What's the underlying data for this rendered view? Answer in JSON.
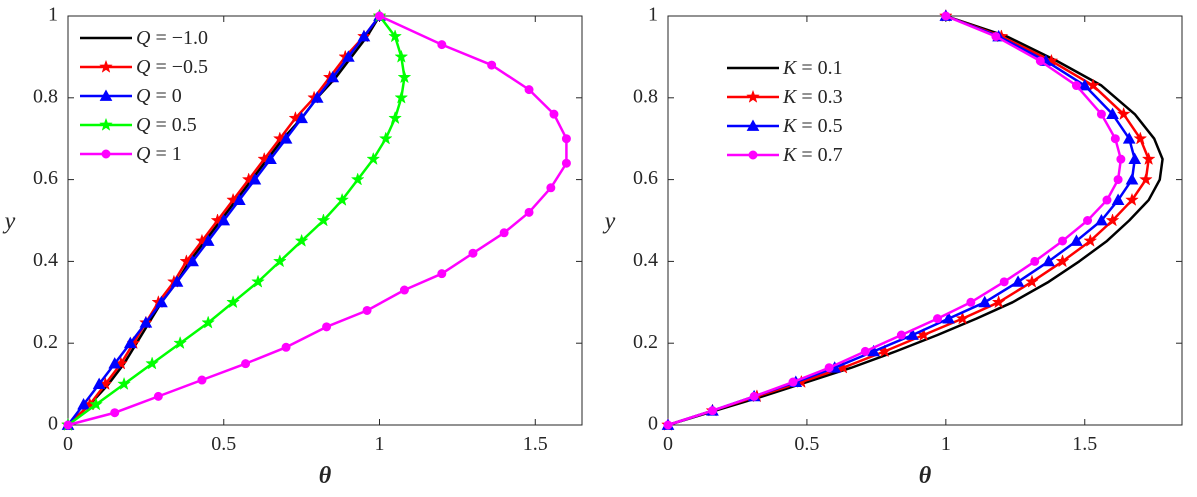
{
  "chart_data": [
    {
      "type": "line",
      "xlabel": "θ",
      "ylabel": "y",
      "xlim": [
        0,
        1.65
      ],
      "ylim": [
        0,
        1
      ],
      "xticks": [
        "0",
        "0.5",
        "1",
        "1.5"
      ],
      "yticks": [
        "0",
        "0.2",
        "0.4",
        "0.6",
        "0.8",
        "1"
      ],
      "grid": false,
      "legend": {
        "placement": "top-left",
        "entries": [
          {
            "var": "Q",
            "value": "= −1.0"
          },
          {
            "var": "Q",
            "value": "= −0.5"
          },
          {
            "var": "Q",
            "value": "= 0"
          },
          {
            "var": "Q",
            "value": "= 0.5"
          },
          {
            "var": "Q",
            "value": "= 1"
          }
        ]
      },
      "series": [
        {
          "name": "Q = −1.0",
          "color": "#000000",
          "marker": "none",
          "points": [
            [
              0,
              0
            ],
            [
              0.07,
              0.05
            ],
            [
              0.13,
              0.1
            ],
            [
              0.18,
              0.15
            ],
            [
              0.22,
              0.2
            ],
            [
              0.26,
              0.25
            ],
            [
              0.3,
              0.3
            ],
            [
              0.35,
              0.35
            ],
            [
              0.39,
              0.4
            ],
            [
              0.44,
              0.45
            ],
            [
              0.49,
              0.5
            ],
            [
              0.54,
              0.55
            ],
            [
              0.59,
              0.6
            ],
            [
              0.64,
              0.65
            ],
            [
              0.69,
              0.7
            ],
            [
              0.75,
              0.75
            ],
            [
              0.8,
              0.8
            ],
            [
              0.86,
              0.85
            ],
            [
              0.91,
              0.9
            ],
            [
              0.96,
              0.95
            ],
            [
              1.0,
              1.0
            ]
          ]
        },
        {
          "name": "Q = −0.5",
          "color": "#ff0000",
          "marker": "star",
          "points": [
            [
              0,
              0
            ],
            [
              0.07,
              0.05
            ],
            [
              0.12,
              0.1
            ],
            [
              0.17,
              0.15
            ],
            [
              0.21,
              0.2
            ],
            [
              0.25,
              0.25
            ],
            [
              0.29,
              0.3
            ],
            [
              0.34,
              0.35
            ],
            [
              0.38,
              0.4
            ],
            [
              0.43,
              0.45
            ],
            [
              0.48,
              0.5
            ],
            [
              0.53,
              0.55
            ],
            [
              0.58,
              0.6
            ],
            [
              0.63,
              0.65
            ],
            [
              0.68,
              0.7
            ],
            [
              0.73,
              0.75
            ],
            [
              0.79,
              0.8
            ],
            [
              0.84,
              0.85
            ],
            [
              0.89,
              0.9
            ],
            [
              0.95,
              0.95
            ],
            [
              1.0,
              1.0
            ]
          ]
        },
        {
          "name": "Q = 0",
          "color": "#0000ff",
          "marker": "triangle",
          "points": [
            [
              0,
              0
            ],
            [
              0.05,
              0.05
            ],
            [
              0.1,
              0.1
            ],
            [
              0.15,
              0.15
            ],
            [
              0.2,
              0.2
            ],
            [
              0.25,
              0.25
            ],
            [
              0.3,
              0.3
            ],
            [
              0.35,
              0.35
            ],
            [
              0.4,
              0.4
            ],
            [
              0.45,
              0.45
            ],
            [
              0.5,
              0.5
            ],
            [
              0.55,
              0.55
            ],
            [
              0.6,
              0.6
            ],
            [
              0.65,
              0.65
            ],
            [
              0.7,
              0.7
            ],
            [
              0.75,
              0.75
            ],
            [
              0.8,
              0.8
            ],
            [
              0.85,
              0.85
            ],
            [
              0.9,
              0.9
            ],
            [
              0.95,
              0.95
            ],
            [
              1.0,
              1.0
            ]
          ]
        },
        {
          "name": "Q = 0.5",
          "color": "#00ff00",
          "marker": "star",
          "points": [
            [
              0,
              0
            ],
            [
              0.09,
              0.05
            ],
            [
              0.18,
              0.1
            ],
            [
              0.27,
              0.15
            ],
            [
              0.36,
              0.2
            ],
            [
              0.45,
              0.25
            ],
            [
              0.53,
              0.3
            ],
            [
              0.61,
              0.35
            ],
            [
              0.68,
              0.4
            ],
            [
              0.75,
              0.45
            ],
            [
              0.82,
              0.5
            ],
            [
              0.88,
              0.55
            ],
            [
              0.93,
              0.6
            ],
            [
              0.98,
              0.65
            ],
            [
              1.02,
              0.7
            ],
            [
              1.05,
              0.75
            ],
            [
              1.07,
              0.8
            ],
            [
              1.08,
              0.85
            ],
            [
              1.07,
              0.9
            ],
            [
              1.05,
              0.95
            ],
            [
              1.0,
              1.0
            ]
          ]
        },
        {
          "name": "Q = 1",
          "color": "#ff00ff",
          "marker": "circle",
          "points": [
            [
              0,
              0
            ],
            [
              0.15,
              0.03
            ],
            [
              0.29,
              0.07
            ],
            [
              0.43,
              0.11
            ],
            [
              0.57,
              0.15
            ],
            [
              0.7,
              0.19
            ],
            [
              0.83,
              0.24
            ],
            [
              0.96,
              0.28
            ],
            [
              1.08,
              0.33
            ],
            [
              1.2,
              0.37
            ],
            [
              1.3,
              0.42
            ],
            [
              1.4,
              0.47
            ],
            [
              1.48,
              0.52
            ],
            [
              1.55,
              0.58
            ],
            [
              1.6,
              0.64
            ],
            [
              1.6,
              0.7
            ],
            [
              1.56,
              0.76
            ],
            [
              1.48,
              0.82
            ],
            [
              1.36,
              0.88
            ],
            [
              1.2,
              0.93
            ],
            [
              1.0,
              1.0
            ]
          ]
        }
      ]
    },
    {
      "type": "line",
      "xlabel": "θ",
      "ylabel": "y",
      "xlim": [
        0,
        1.85
      ],
      "ylim": [
        0,
        1
      ],
      "xticks": [
        "0",
        "0.5",
        "1",
        "1.5"
      ],
      "yticks": [
        "0",
        "0.2",
        "0.4",
        "0.6",
        "0.8",
        "1"
      ],
      "grid": false,
      "legend": {
        "placement": "top-left",
        "entries": [
          {
            "var": "K",
            "value": "= 0.1"
          },
          {
            "var": "K",
            "value": "= 0.3"
          },
          {
            "var": "K",
            "value": "= 0.5"
          },
          {
            "var": "K",
            "value": "= 0.7"
          }
        ]
      },
      "series": [
        {
          "name": "K = 0.1",
          "color": "#000000",
          "marker": "none",
          "points": [
            [
              0,
              0
            ],
            [
              0.17,
              0.035
            ],
            [
              0.34,
              0.07
            ],
            [
              0.5,
              0.105
            ],
            [
              0.66,
              0.14
            ],
            [
              0.82,
              0.18
            ],
            [
              0.97,
              0.22
            ],
            [
              1.11,
              0.26
            ],
            [
              1.24,
              0.3
            ],
            [
              1.37,
              0.35
            ],
            [
              1.48,
              0.4
            ],
            [
              1.58,
              0.45
            ],
            [
              1.66,
              0.5
            ],
            [
              1.73,
              0.55
            ],
            [
              1.77,
              0.6
            ],
            [
              1.78,
              0.65
            ],
            [
              1.75,
              0.7
            ],
            [
              1.68,
              0.76
            ],
            [
              1.56,
              0.83
            ],
            [
              1.4,
              0.89
            ],
            [
              1.22,
              0.95
            ],
            [
              1.0,
              1.0
            ]
          ]
        },
        {
          "name": "K = 0.3",
          "color": "#ff0000",
          "marker": "star",
          "points": [
            [
              0,
              0
            ],
            [
              0.16,
              0.035
            ],
            [
              0.32,
              0.07
            ],
            [
              0.48,
              0.105
            ],
            [
              0.63,
              0.14
            ],
            [
              0.78,
              0.18
            ],
            [
              0.92,
              0.22
            ],
            [
              1.06,
              0.26
            ],
            [
              1.19,
              0.3
            ],
            [
              1.31,
              0.35
            ],
            [
              1.42,
              0.4
            ],
            [
              1.52,
              0.45
            ],
            [
              1.6,
              0.5
            ],
            [
              1.67,
              0.55
            ],
            [
              1.72,
              0.6
            ],
            [
              1.73,
              0.65
            ],
            [
              1.7,
              0.7
            ],
            [
              1.64,
              0.76
            ],
            [
              1.53,
              0.83
            ],
            [
              1.38,
              0.89
            ],
            [
              1.2,
              0.95
            ],
            [
              1.0,
              1.0
            ]
          ]
        },
        {
          "name": "K = 0.5",
          "color": "#0000ff",
          "marker": "triangle",
          "points": [
            [
              0,
              0
            ],
            [
              0.16,
              0.035
            ],
            [
              0.31,
              0.07
            ],
            [
              0.46,
              0.105
            ],
            [
              0.6,
              0.14
            ],
            [
              0.74,
              0.18
            ],
            [
              0.88,
              0.22
            ],
            [
              1.01,
              0.26
            ],
            [
              1.14,
              0.3
            ],
            [
              1.26,
              0.35
            ],
            [
              1.37,
              0.4
            ],
            [
              1.47,
              0.45
            ],
            [
              1.56,
              0.5
            ],
            [
              1.62,
              0.55
            ],
            [
              1.67,
              0.6
            ],
            [
              1.68,
              0.65
            ],
            [
              1.66,
              0.7
            ],
            [
              1.6,
              0.76
            ],
            [
              1.5,
              0.83
            ],
            [
              1.36,
              0.89
            ],
            [
              1.19,
              0.95
            ],
            [
              1.0,
              1.0
            ]
          ]
        },
        {
          "name": "K = 0.7",
          "color": "#ff00ff",
          "marker": "circle",
          "points": [
            [
              0,
              0
            ],
            [
              0.16,
              0.035
            ],
            [
              0.31,
              0.07
            ],
            [
              0.45,
              0.105
            ],
            [
              0.58,
              0.14
            ],
            [
              0.71,
              0.18
            ],
            [
              0.84,
              0.22
            ],
            [
              0.97,
              0.26
            ],
            [
              1.09,
              0.3
            ],
            [
              1.21,
              0.35
            ],
            [
              1.32,
              0.4
            ],
            [
              1.42,
              0.45
            ],
            [
              1.51,
              0.5
            ],
            [
              1.58,
              0.55
            ],
            [
              1.62,
              0.6
            ],
            [
              1.63,
              0.65
            ],
            [
              1.61,
              0.7
            ],
            [
              1.56,
              0.76
            ],
            [
              1.47,
              0.83
            ],
            [
              1.34,
              0.89
            ],
            [
              1.18,
              0.95
            ],
            [
              1.0,
              1.0
            ]
          ]
        }
      ]
    }
  ]
}
